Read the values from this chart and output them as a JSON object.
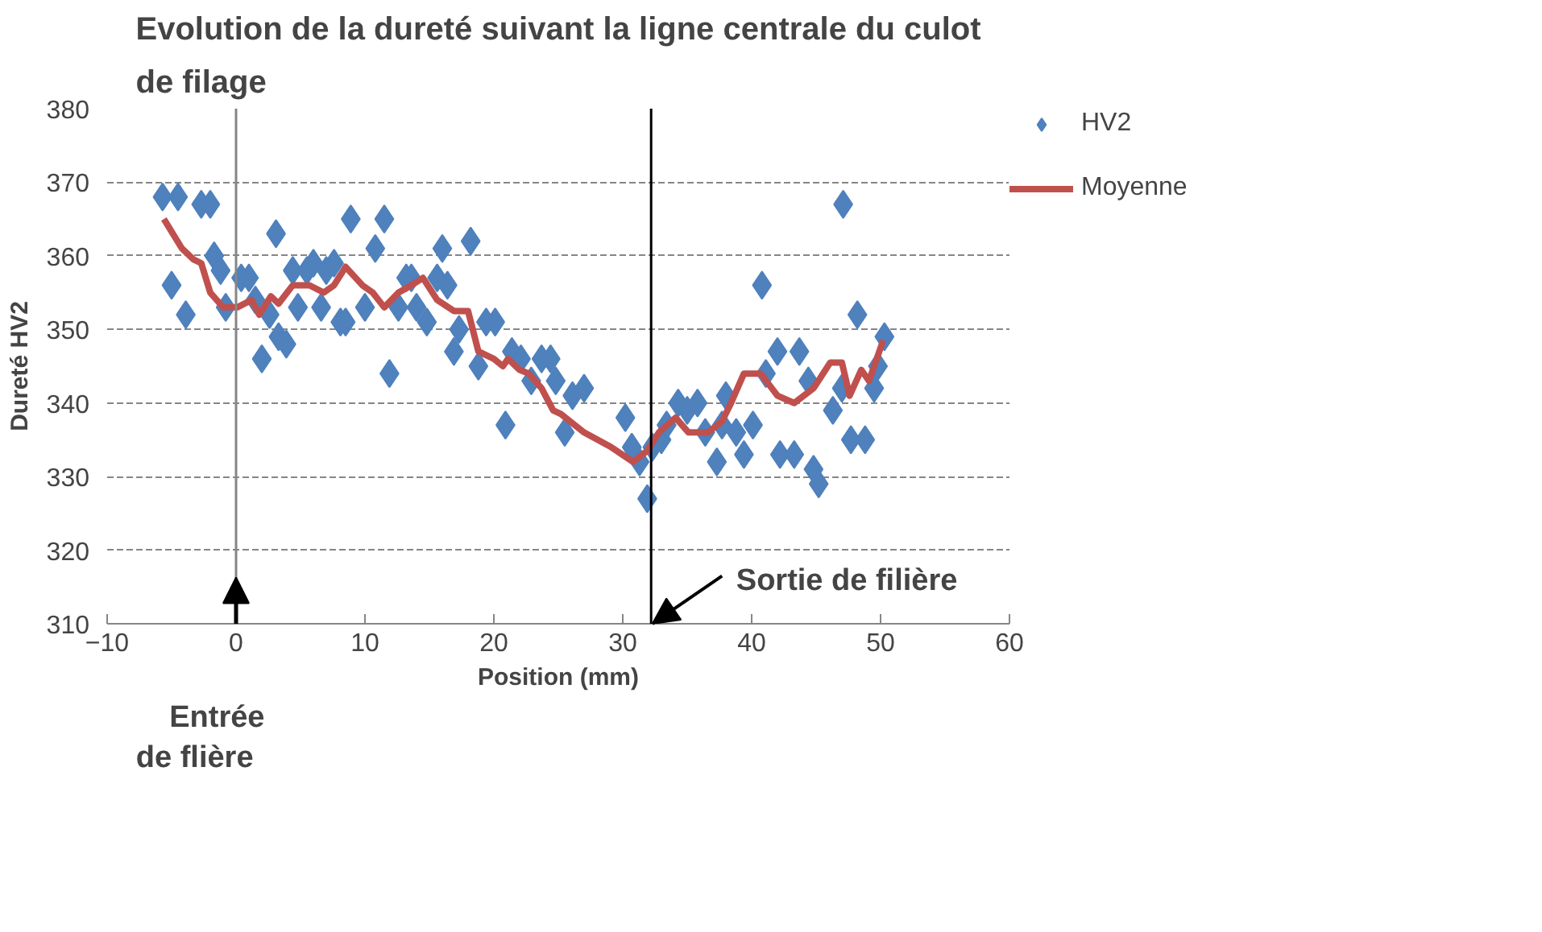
{
  "chart_data": {
    "type": "scatter",
    "title": "Evolution de la dureté suivant la ligne centrale du culot\nde filage",
    "xlabel": "Position (mm)",
    "ylabel": "Dureté HV2",
    "xlim": [
      -10,
      60
    ],
    "xticks": [
      -10,
      0,
      10,
      20,
      30,
      40,
      50,
      60
    ],
    "ylim": [
      310,
      380
    ],
    "yticks": [
      310,
      320,
      330,
      340,
      350,
      360,
      370,
      380
    ],
    "grid": "y",
    "legend": "right",
    "marker": "diamond",
    "series": [
      {
        "name": "HV2",
        "color": "#4f81bd",
        "x": [
          -5.7,
          -5.0,
          -4.5,
          -3.9,
          -2.7,
          -2.0,
          -1.7,
          -1.2,
          -0.8,
          0.4,
          1.0,
          1.5,
          2.0,
          2.6,
          3.1,
          3.3,
          3.9,
          4.4,
          4.8,
          5.5,
          6.0,
          6.6,
          7.0,
          7.6,
          8.1,
          8.5,
          8.9,
          10.0,
          10.8,
          11.5,
          11.9,
          12.6,
          13.2,
          13.6,
          14.0,
          14.8,
          15.6,
          16.0,
          16.4,
          16.9,
          17.3,
          18.2,
          18.8,
          19.4,
          20.1,
          20.9,
          21.4,
          22.1,
          22.9,
          23.7,
          24.4,
          24.8,
          25.5,
          26.1,
          27.0,
          30.2,
          30.7,
          31.3,
          31.9,
          32.3,
          33.0,
          33.4,
          34.3,
          35.0,
          35.8,
          36.4,
          37.3,
          37.7,
          38.0,
          38.8,
          39.4,
          40.1,
          40.8,
          41.1,
          42.0,
          42.2,
          43.3,
          43.7,
          44.4,
          44.8,
          45.2,
          46.3,
          47.0,
          47.1,
          47.7,
          48.2,
          48.8,
          49.5,
          49.8,
          50.3
        ],
        "values": [
          368,
          356,
          368,
          352,
          367,
          367,
          360,
          358,
          353,
          357,
          357,
          354,
          346,
          352,
          363,
          349,
          348,
          358,
          353,
          358,
          359,
          353,
          358,
          359,
          351,
          351,
          365,
          353,
          361,
          365,
          344,
          353,
          357,
          357,
          353,
          351,
          357,
          361,
          356,
          347,
          350,
          362,
          345,
          351,
          351,
          337,
          347,
          346,
          343,
          346,
          346,
          343,
          336,
          341,
          342,
          338,
          334,
          332,
          327,
          334,
          335,
          337,
          340,
          339,
          340,
          336,
          332,
          337,
          341,
          336,
          333,
          337,
          356,
          344,
          347,
          333,
          333,
          347,
          343,
          331,
          329,
          339,
          342,
          367,
          335,
          352,
          335,
          342,
          345,
          349
        ]
      },
      {
        "name": "Moyenne",
        "type": "line",
        "color": "#c0504d",
        "marker": "none",
        "line_style": "solid",
        "x": [
          -5.6,
          -4.2,
          -3.3,
          -2.7,
          -2.0,
          -1.0,
          0.1,
          1.2,
          1.8,
          2.7,
          3.3,
          4.4,
          5.7,
          6.8,
          7.6,
          8.5,
          9.8,
          10.6,
          11.5,
          12.6,
          13.6,
          14.5,
          15.6,
          16.9,
          18.0,
          18.8,
          20.0,
          20.7,
          21.1,
          22.0,
          22.7,
          23.7,
          24.6,
          25.2,
          27.0,
          29.1,
          30.8,
          31.9,
          32.8,
          34.1,
          35.1,
          36.6,
          37.7,
          38.4,
          39.4,
          40.7,
          42.0,
          43.3,
          44.8,
          46.1,
          47.0,
          47.6,
          48.5,
          49.1,
          50.2
        ],
        "values": [
          365,
          361,
          359.5,
          359,
          355,
          353,
          353,
          354,
          352,
          354.5,
          353.5,
          356,
          356,
          355,
          356,
          358.5,
          356,
          355,
          353,
          355,
          356,
          357,
          354,
          352.5,
          352.5,
          347,
          346,
          345,
          346,
          344.5,
          344,
          342,
          339,
          338.5,
          336,
          334,
          332,
          333.5,
          336,
          338,
          336,
          336,
          337.5,
          340,
          344,
          344,
          341,
          340,
          342,
          345.5,
          345.5,
          341,
          344.5,
          343,
          348.5
        ]
      }
    ],
    "ref_lines": [
      {
        "axis": "x",
        "value": 0,
        "color": "#868686"
      },
      {
        "axis": "x",
        "value": 32.2,
        "color": "#000000"
      }
    ],
    "annotations": [
      {
        "text": "Entrée\nde flière",
        "x": 0,
        "y": 310
      },
      {
        "text": "Sortie de filière",
        "x": 32.3,
        "y": 310
      }
    ]
  }
}
